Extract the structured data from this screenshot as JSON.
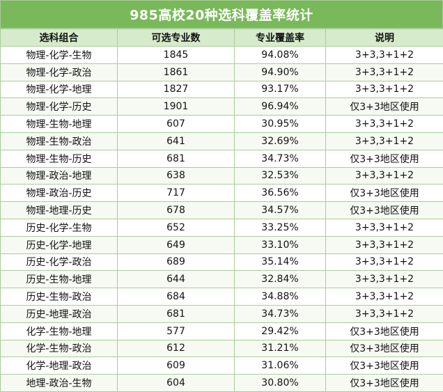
{
  "title": "985高校20种选科覆盖率统计",
  "headers": [
    "选科组合",
    "可选专业数",
    "专业覆盖率",
    "说明"
  ],
  "rows": [
    [
      "物理-化学-生物",
      "1845",
      "94.08%",
      "3+3,3+1+2"
    ],
    [
      "物理-化学-政治",
      "1861",
      "94.90%",
      "3+3,3+1+2"
    ],
    [
      "物理-化学-地理",
      "1827",
      "93.17%",
      "3+3,3+1+2"
    ],
    [
      "物理-化学-历史",
      "1901",
      "96.94%",
      "仅3+3地区使用"
    ],
    [
      "物理-生物-地理",
      "607",
      "30.95%",
      "3+3,3+1+2"
    ],
    [
      "物理-生物-政治",
      "641",
      "32.69%",
      "3+3,3+1+2"
    ],
    [
      "物理-生物-历史",
      "681",
      "34.73%",
      "仅3+3地区使用"
    ],
    [
      "物理-政治-地理",
      "638",
      "32.53%",
      "3+3,3+1+2"
    ],
    [
      "物理-政治-历史",
      "717",
      "36.56%",
      "仅3+3地区使用"
    ],
    [
      "物理-地理-历史",
      "678",
      "34.57%",
      "仅3+3地区使用"
    ],
    [
      "历史-化学-生物",
      "652",
      "33.25%",
      "3+3,3+1+2"
    ],
    [
      "历史-化学-地理",
      "649",
      "33.10%",
      "3+3,3+1+2"
    ],
    [
      "历史-化学-政治",
      "689",
      "35.14%",
      "3+3,3+1+2"
    ],
    [
      "历史-生物-地理",
      "644",
      "32.84%",
      "3+3,3+1+2"
    ],
    [
      "历史-生物-政治",
      "684",
      "34.88%",
      "3+3,3+1+2"
    ],
    [
      "历史-地理-政治",
      "681",
      "34.73%",
      "3+3,3+1+2"
    ],
    [
      "化学-生物-地理",
      "577",
      "29.42%",
      "仅3+3地区使用"
    ],
    [
      "化学-生物-政治",
      "612",
      "31.21%",
      "仅3+3地区使用"
    ],
    [
      "化学-地理-政治",
      "609",
      "31.06%",
      "仅3+3地区使用"
    ],
    [
      "地理-政治-生物",
      "604",
      "30.80%",
      "仅3+3地区使用"
    ]
  ]
}
